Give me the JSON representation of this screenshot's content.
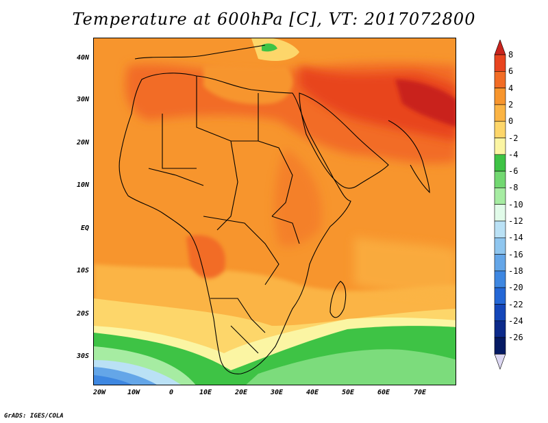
{
  "title": "Temperature at 600hPa [C], VT: 2017072800",
  "y_ticks": [
    "40N",
    "30N",
    "20N",
    "10N",
    "EQ",
    "10S",
    "20S",
    "30S"
  ],
  "x_ticks": [
    "20W",
    "10W",
    "0",
    "10E",
    "20E",
    "30E",
    "40E",
    "50E",
    "60E",
    "70E"
  ],
  "colorbar": {
    "labels": [
      "8",
      "6",
      "4",
      "2",
      "0",
      "-2",
      "-4",
      "-6",
      "-8",
      "-10",
      "-12",
      "-14",
      "-16",
      "-18",
      "-20",
      "-22",
      "-24",
      "-26"
    ],
    "colors": [
      "#c9241d",
      "#e8441f",
      "#f26c25",
      "#f7952d",
      "#fbb444",
      "#fdd66a",
      "#fbf5a3",
      "#3ec345",
      "#72d871",
      "#a6eca2",
      "#e1fbe9",
      "#bae1f5",
      "#8fc6ef",
      "#64a6e8",
      "#3e87e1",
      "#2467d6",
      "#1446b9",
      "#0c2a8a",
      "#051a63",
      "#ddd8f3"
    ],
    "arrow_top_color": "#c9241d",
    "arrow_bottom_color": "#ddd8f3"
  },
  "footer": "GrADS: IGES/COLA"
}
